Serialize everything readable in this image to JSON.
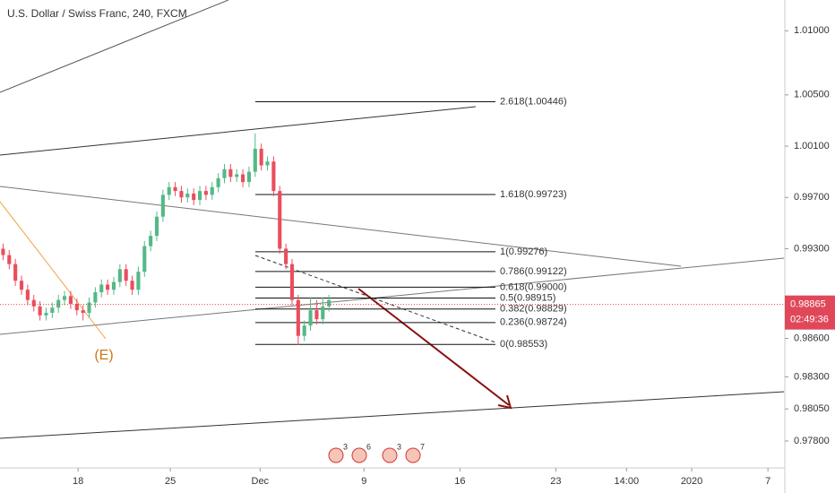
{
  "chart_data": {
    "type": "candlestick",
    "title": "U.S. Dollar / Swiss Franc, 240, FXCM",
    "open": [
      0.993,
      0.9925,
      0.9918,
      0.9905,
      0.9898,
      0.989,
      0.9885,
      0.9878,
      0.988,
      0.9884,
      0.989,
      0.9893,
      0.9887,
      0.9882,
      0.988,
      0.9888,
      0.9896,
      0.9902,
      0.9898,
      0.9904,
      0.9914,
      0.9905,
      0.9898,
      0.9912,
      0.9932,
      0.994,
      0.9955,
      0.9972,
      0.9978,
      0.9975,
      0.997,
      0.9973,
      0.9968,
      0.9975,
      0.9972,
      0.9978,
      0.9985,
      0.9992,
      0.9986,
      0.9988,
      0.9982,
      0.999,
      1.0008,
      0.9995,
      0.9998,
      0.9975,
      0.993,
      0.9918,
      0.989,
      0.9862,
      0.987,
      0.9882,
      0.9875,
      0.9885
    ],
    "high": [
      0.9934,
      0.9929,
      0.9922,
      0.9909,
      0.9902,
      0.9894,
      0.9889,
      0.9884,
      0.9888,
      0.9894,
      0.9897,
      0.9897,
      0.9891,
      0.9886,
      0.9892,
      0.99,
      0.9906,
      0.9906,
      0.9908,
      0.9918,
      0.9918,
      0.9909,
      0.9916,
      0.9936,
      0.9944,
      0.9959,
      0.9976,
      0.9982,
      0.9982,
      0.9979,
      0.9977,
      0.9977,
      0.9979,
      0.9979,
      0.9982,
      0.9989,
      0.9996,
      0.9996,
      0.9992,
      0.9992,
      0.9994,
      1.002,
      1.0012,
      1.0002,
      1.0002,
      0.9979,
      0.9934,
      0.9922,
      0.9894,
      0.9874,
      0.9892,
      0.989,
      0.9892,
      0.9894
    ],
    "low": [
      0.9921,
      0.9914,
      0.9901,
      0.9894,
      0.9886,
      0.9881,
      0.9874,
      0.9874,
      0.9876,
      0.988,
      0.9886,
      0.9883,
      0.9878,
      0.9874,
      0.9876,
      0.9884,
      0.9892,
      0.9894,
      0.9894,
      0.99,
      0.9901,
      0.9894,
      0.9894,
      0.9908,
      0.9928,
      0.9936,
      0.9951,
      0.9968,
      0.9971,
      0.9966,
      0.9966,
      0.9964,
      0.9964,
      0.9968,
      0.9968,
      0.9974,
      0.9981,
      0.9982,
      0.9982,
      0.9978,
      0.9978,
      0.9986,
      0.9991,
      0.9991,
      0.9971,
      0.9926,
      0.9914,
      0.9886,
      0.9855,
      0.9858,
      0.9866,
      0.9871,
      0.9871,
      0.9881
    ],
    "close": [
      0.9925,
      0.9918,
      0.9905,
      0.9898,
      0.989,
      0.9885,
      0.9878,
      0.988,
      0.9884,
      0.989,
      0.9893,
      0.9887,
      0.9882,
      0.988,
      0.9888,
      0.9896,
      0.9902,
      0.9898,
      0.9904,
      0.9914,
      0.9905,
      0.9898,
      0.9912,
      0.9932,
      0.994,
      0.9955,
      0.9972,
      0.9978,
      0.9975,
      0.997,
      0.9973,
      0.9968,
      0.9975,
      0.9972,
      0.9978,
      0.9985,
      0.9992,
      0.9986,
      0.9988,
      0.9982,
      0.999,
      1.0008,
      0.9995,
      0.9998,
      0.9975,
      0.993,
      0.9918,
      0.989,
      0.9862,
      0.987,
      0.9882,
      0.9875,
      0.9885,
      0.989
    ],
    "up_color": "#53b987",
    "down_color": "#eb4d5c",
    "ylim": [
      0.9759,
      1.0124
    ],
    "yticks": [
      {
        "value": 1.01,
        "label": "1.01000"
      },
      {
        "value": 1.005,
        "label": "1.00500"
      },
      {
        "value": 1.001,
        "label": "1.00100"
      },
      {
        "value": 0.997,
        "label": "0.99700"
      },
      {
        "value": 0.993,
        "label": "0.99300"
      },
      {
        "value": 0.986,
        "label": "0.98600"
      },
      {
        "value": 0.983,
        "label": "0.98300"
      },
      {
        "value": 0.9805,
        "label": "0.98050"
      },
      {
        "value": 0.978,
        "label": "0.97800"
      }
    ],
    "xlim": [
      0,
      127.5
    ],
    "xticks": [
      {
        "value": 12.7,
        "label": "18"
      },
      {
        "value": 27.7,
        "label": "25"
      },
      {
        "value": 42.3,
        "label": "Dec"
      },
      {
        "value": 59.2,
        "label": "9"
      },
      {
        "value": 74.8,
        "label": "16"
      },
      {
        "value": 90.4,
        "label": "23"
      },
      {
        "value": 101.9,
        "label": "14:00"
      },
      {
        "value": 112.5,
        "label": "2020"
      },
      {
        "value": 124.9,
        "label": "7"
      }
    ],
    "fib_levels": [
      {
        "label": "2.618(1.00446)",
        "value": 1.00446
      },
      {
        "label": "1.618(0.99723)",
        "value": 0.99723
      },
      {
        "label": "1(0.99276)",
        "value": 0.99276
      },
      {
        "label": "0.786(0.99122)",
        "value": 0.99122
      },
      {
        "label": "0.618(0.99000)",
        "value": 0.99
      },
      {
        "label": "0.5(0.98915)",
        "value": 0.98915
      },
      {
        "label": "0.382(0.98829)",
        "value": 0.98829
      },
      {
        "label": "0.236(0.98724)",
        "value": 0.98724
      },
      {
        "label": "0(0.98553)",
        "value": 0.98553
      }
    ],
    "last_price": {
      "value": 0.98865,
      "label": "0.98865"
    },
    "countdown": "02:49:36",
    "wave_label": "(E)",
    "events": [
      "3",
      "6",
      "3",
      "7"
    ]
  }
}
